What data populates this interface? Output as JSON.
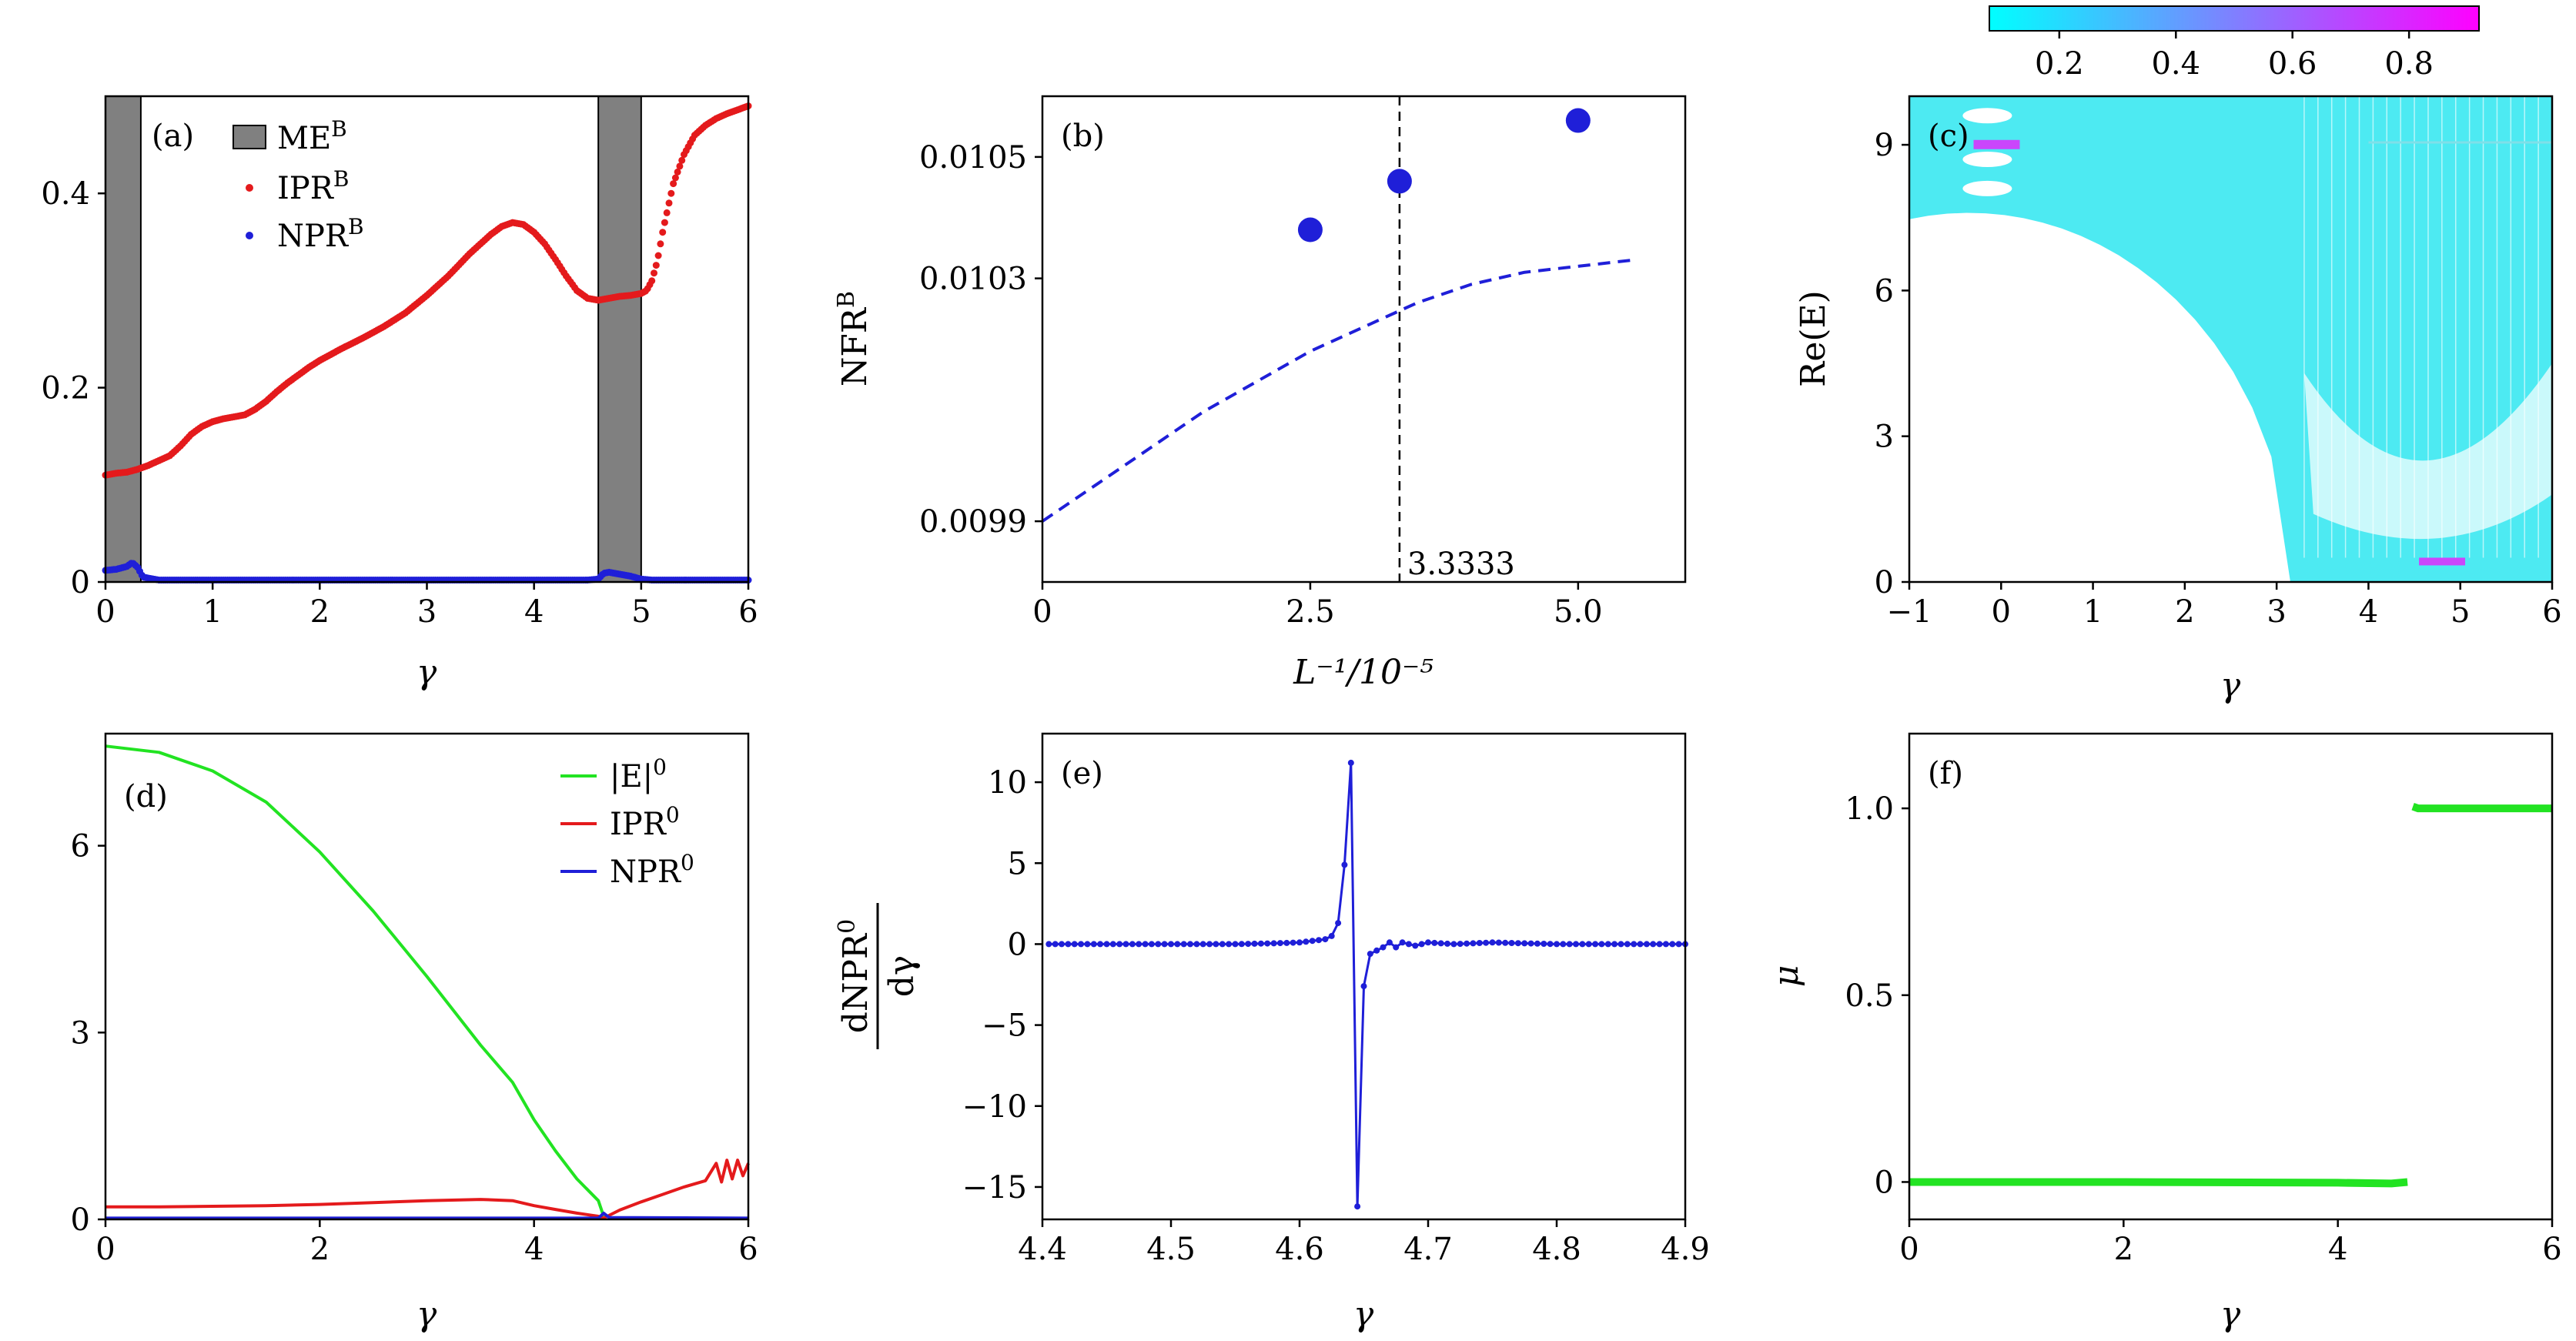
{
  "figure": {
    "colors": {
      "red": "#e41a1c",
      "blue": "#1f1fd8",
      "green": "#22e322",
      "cyan": "#2ee6f0",
      "magenta": "#ff00ff",
      "grey": "#808080"
    }
  },
  "chart_data": [
    {
      "panel": "(a)",
      "type": "line",
      "xlabel": "γ",
      "ylabel": "",
      "xlim": [
        0,
        6
      ],
      "ylim": [
        0,
        0.5
      ],
      "xticks": [
        "0",
        "1",
        "2",
        "3",
        "4",
        "5",
        "6"
      ],
      "yticks": [
        "0",
        "0.2",
        "0.4"
      ],
      "legend": [
        {
          "label": "ME",
          "sup": "B"
        },
        {
          "label": "IPR",
          "sup": "B"
        },
        {
          "label": "NPR",
          "sup": "B"
        }
      ],
      "shaded_regions": [
        [
          0,
          0.33
        ],
        [
          4.6,
          5.0
        ]
      ],
      "series": [
        {
          "name": "IPR^B",
          "x": [
            0,
            0.1,
            0.2,
            0.3,
            0.4,
            0.5,
            0.6,
            0.7,
            0.8,
            0.9,
            1.0,
            1.1,
            1.2,
            1.3,
            1.4,
            1.5,
            1.6,
            1.7,
            1.8,
            1.9,
            2.0,
            2.2,
            2.4,
            2.6,
            2.8,
            3.0,
            3.2,
            3.4,
            3.6,
            3.7,
            3.8,
            3.9,
            4.0,
            4.1,
            4.2,
            4.3,
            4.4,
            4.5,
            4.6,
            4.7,
            4.8,
            4.9,
            5.0,
            5.05,
            5.1,
            5.15,
            5.2,
            5.3,
            5.4,
            5.5,
            5.6,
            5.7,
            5.8,
            5.9,
            6.0
          ],
          "y": [
            0.11,
            0.112,
            0.113,
            0.116,
            0.12,
            0.125,
            0.13,
            0.14,
            0.152,
            0.16,
            0.165,
            0.168,
            0.17,
            0.172,
            0.178,
            0.186,
            0.196,
            0.205,
            0.213,
            0.221,
            0.228,
            0.24,
            0.251,
            0.263,
            0.277,
            0.295,
            0.315,
            0.338,
            0.358,
            0.366,
            0.37,
            0.368,
            0.36,
            0.348,
            0.332,
            0.315,
            0.3,
            0.292,
            0.29,
            0.292,
            0.294,
            0.295,
            0.297,
            0.3,
            0.31,
            0.33,
            0.36,
            0.41,
            0.44,
            0.46,
            0.47,
            0.477,
            0.482,
            0.486,
            0.49
          ]
        },
        {
          "name": "NPR^B",
          "x": [
            0,
            0.1,
            0.2,
            0.25,
            0.3,
            0.35,
            0.5,
            1,
            2,
            3,
            4,
            4.5,
            4.6,
            4.65,
            4.7,
            4.8,
            4.9,
            5.0,
            5.1,
            6.0
          ],
          "y": [
            0.012,
            0.013,
            0.016,
            0.02,
            0.015,
            0.005,
            0.002,
            0.002,
            0.002,
            0.002,
            0.002,
            0.002,
            0.003,
            0.009,
            0.01,
            0.008,
            0.006,
            0.003,
            0.002,
            0.002
          ]
        }
      ]
    },
    {
      "panel": "(b)",
      "type": "scatter",
      "xlabel": "L⁻¹/10⁻⁵",
      "ylabel": "NFR",
      "ylabel_sup": "B",
      "xlim": [
        0,
        6
      ],
      "ylim": [
        0.0098,
        0.0106
      ],
      "xticks": [
        "0",
        "2.5",
        "5.0"
      ],
      "yticks": [
        "0.0099",
        "0.0103",
        "0.0105"
      ],
      "vline": {
        "x": 3.3333,
        "label": "3.3333"
      },
      "points": {
        "x": [
          2.5,
          3.3333,
          5.0
        ],
        "y": [
          0.01038,
          0.01046,
          0.01056
        ]
      },
      "fit": {
        "x": [
          0,
          0.5,
          1,
          1.5,
          2,
          2.5,
          3,
          3.5,
          4,
          4.5,
          5,
          5.5
        ],
        "y": [
          0.0099,
          0.00996,
          0.01002,
          0.01008,
          0.01013,
          0.01018,
          0.01022,
          0.01026,
          0.01029,
          0.01031,
          0.01032,
          0.01033
        ]
      }
    },
    {
      "panel": "(c)",
      "type": "heatmap",
      "xlabel": "γ",
      "ylabel": "Re(E)",
      "xlim": [
        -1,
        6
      ],
      "ylim": [
        0,
        10
      ],
      "xticks": [
        "−1",
        "0",
        "1",
        "2",
        "3",
        "4",
        "5",
        "6"
      ],
      "yticks": [
        "0",
        "3",
        "6",
        "9"
      ],
      "colorbar": {
        "ticks": [
          "0.2",
          "0.4",
          "0.6",
          "0.8"
        ],
        "range": [
          0.08,
          0.92
        ],
        "colors": [
          "#00ffff",
          "#ff00ff"
        ]
      }
    },
    {
      "panel": "(d)",
      "type": "line",
      "xlabel": "γ",
      "ylabel": "",
      "xlim": [
        0,
        6
      ],
      "ylim": [
        0,
        7.8
      ],
      "xticks": [
        "0",
        "2",
        "4",
        "6"
      ],
      "yticks": [
        "0",
        "3",
        "6"
      ],
      "legend": [
        {
          "label": "|E|",
          "sup": "0"
        },
        {
          "label": "IPR",
          "sup": "0"
        },
        {
          "label": "NPR",
          "sup": "0"
        }
      ],
      "series": [
        {
          "name": "|E|^0",
          "x": [
            0,
            0.5,
            1.0,
            1.5,
            2.0,
            2.5,
            3.0,
            3.5,
            3.8,
            4.0,
            4.2,
            4.4,
            4.6,
            4.65
          ],
          "y": [
            7.6,
            7.5,
            7.2,
            6.7,
            5.9,
            4.95,
            3.9,
            2.8,
            2.2,
            1.6,
            1.1,
            0.65,
            0.3,
            0.05
          ]
        },
        {
          "name": "IPR^0",
          "x": [
            0,
            0.5,
            1,
            1.5,
            2,
            2.5,
            3,
            3.5,
            3.8,
            4.0,
            4.2,
            4.4,
            4.6,
            4.65,
            4.8,
            5.0,
            5.2,
            5.4,
            5.6,
            5.7,
            5.75,
            5.8,
            5.85,
            5.9,
            5.95,
            6.0
          ],
          "y": [
            0.2,
            0.2,
            0.21,
            0.22,
            0.24,
            0.27,
            0.3,
            0.32,
            0.3,
            0.22,
            0.16,
            0.1,
            0.05,
            0.02,
            0.15,
            0.28,
            0.4,
            0.52,
            0.62,
            0.9,
            0.6,
            0.95,
            0.65,
            0.95,
            0.7,
            0.9
          ]
        },
        {
          "name": "NPR^0",
          "x": [
            0,
            4.6,
            4.65,
            4.7,
            6.0
          ],
          "y": [
            0.02,
            0.02,
            0.1,
            0.03,
            0.02
          ]
        }
      ]
    },
    {
      "panel": "(e)",
      "type": "line",
      "xlabel": "γ",
      "ylabel": "dNPR⁰/dγ",
      "ylabel_num": "dNPR",
      "ylabel_num_sup": "0",
      "ylabel_den": "dγ",
      "xlim": [
        4.4,
        4.9
      ],
      "ylim": [
        -17,
        13
      ],
      "xticks": [
        "4.4",
        "4.5",
        "4.6",
        "4.7",
        "4.8",
        "4.9"
      ],
      "yticks": [
        "−15",
        "−10",
        "−5",
        "0",
        "5",
        "10"
      ],
      "series": [
        {
          "name": "dNPR^0/dγ",
          "x": [
            4.4,
            4.5,
            4.55,
            4.58,
            4.6,
            4.61,
            4.62,
            4.625,
            4.63,
            4.635,
            4.64,
            4.645,
            4.65,
            4.655,
            4.66,
            4.665,
            4.67,
            4.675,
            4.68,
            4.69,
            4.7,
            4.72,
            4.75,
            4.8,
            4.85,
            4.9
          ],
          "y": [
            0,
            0,
            0,
            0.05,
            0.1,
            0.2,
            0.3,
            0.5,
            1.3,
            4.9,
            11.2,
            -16.2,
            -2.6,
            -0.6,
            -0.4,
            -0.2,
            0.1,
            -0.2,
            0.1,
            -0.1,
            0.1,
            0,
            0.1,
            0,
            0,
            0
          ]
        }
      ]
    },
    {
      "panel": "(f)",
      "type": "line",
      "xlabel": "γ",
      "ylabel": "μ",
      "xlim": [
        0,
        6
      ],
      "ylim": [
        -0.1,
        1.2
      ],
      "xticks": [
        "0",
        "2",
        "4",
        "6"
      ],
      "yticks": [
        "0",
        "0.5",
        "1.0"
      ],
      "series": [
        {
          "name": "μ",
          "segments": [
            {
              "x": [
                0,
                2,
                4,
                4.5,
                4.65
              ],
              "y": [
                0,
                0,
                -0.002,
                -0.004,
                0
              ]
            },
            {
              "x": [
                4.7,
                4.75,
                5,
                6
              ],
              "y": [
                1.005,
                1.0,
                1.0,
                1.0
              ]
            }
          ]
        }
      ]
    }
  ]
}
